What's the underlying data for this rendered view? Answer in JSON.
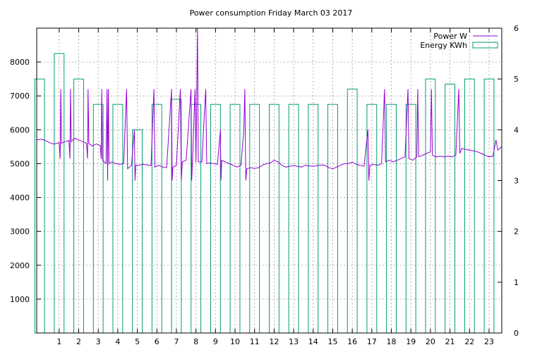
{
  "chart_data": {
    "type": "bar+line",
    "title": "Power consumption Friday March 03 2017",
    "x_ticks": [
      1,
      2,
      3,
      4,
      5,
      6,
      7,
      8,
      9,
      10,
      11,
      12,
      13,
      14,
      15,
      16,
      17,
      18,
      19,
      20,
      21,
      22,
      23
    ],
    "xlim": [
      -0.15,
      23.65
    ],
    "y_left": {
      "ticks": [
        1000,
        2000,
        3000,
        4000,
        5000,
        6000,
        7000,
        8000
      ],
      "ylim": [
        0,
        9000
      ]
    },
    "y_right": {
      "ticks": [
        0,
        1,
        2,
        3,
        4,
        5,
        6
      ],
      "ylim": [
        0,
        6
      ]
    },
    "grid": true,
    "legend": {
      "position": "top-right"
    },
    "colors": {
      "power": "#9400d3",
      "energy": "#009e73"
    },
    "series": [
      {
        "name": "Power W",
        "axis": "left",
        "style": "line",
        "points": [
          [
            -0.15,
            5700
          ],
          [
            0.1,
            5720
          ],
          [
            0.3,
            5680
          ],
          [
            0.5,
            5620
          ],
          [
            0.7,
            5580
          ],
          [
            0.9,
            5600
          ],
          [
            1.0,
            5620
          ],
          [
            1.05,
            5150
          ],
          [
            1.08,
            7200
          ],
          [
            1.12,
            5600
          ],
          [
            1.3,
            5650
          ],
          [
            1.5,
            5680
          ],
          [
            1.55,
            5150
          ],
          [
            1.58,
            7200
          ],
          [
            1.62,
            5650
          ],
          [
            1.8,
            5750
          ],
          [
            2.0,
            5700
          ],
          [
            2.2,
            5650
          ],
          [
            2.4,
            5600
          ],
          [
            2.45,
            5150
          ],
          [
            2.48,
            7200
          ],
          [
            2.52,
            5600
          ],
          [
            2.7,
            5520
          ],
          [
            2.9,
            5580
          ],
          [
            3.1,
            5540
          ],
          [
            3.15,
            5150
          ],
          [
            3.18,
            7200
          ],
          [
            3.22,
            5100
          ],
          [
            3.4,
            5000
          ],
          [
            3.45,
            7200
          ],
          [
            3.48,
            4500
          ],
          [
            3.52,
            7200
          ],
          [
            3.55,
            5000
          ],
          [
            3.7,
            5050
          ],
          [
            3.9,
            5000
          ],
          [
            4.1,
            4980
          ],
          [
            4.3,
            5000
          ],
          [
            4.45,
            7200
          ],
          [
            4.5,
            4850
          ],
          [
            4.7,
            4950
          ],
          [
            4.85,
            6000
          ],
          [
            4.88,
            4500
          ],
          [
            4.92,
            4950
          ],
          [
            5.1,
            4950
          ],
          [
            5.3,
            4980
          ],
          [
            5.5,
            4960
          ],
          [
            5.7,
            4940
          ],
          [
            5.85,
            7200
          ],
          [
            5.9,
            4900
          ],
          [
            6.1,
            4950
          ],
          [
            6.3,
            4900
          ],
          [
            6.5,
            4880
          ],
          [
            6.75,
            7200
          ],
          [
            6.78,
            4500
          ],
          [
            6.82,
            4900
          ],
          [
            7.0,
            4950
          ],
          [
            7.2,
            7200
          ],
          [
            7.25,
            4500
          ],
          [
            7.3,
            5050
          ],
          [
            7.5,
            5100
          ],
          [
            7.75,
            7200
          ],
          [
            7.78,
            4500
          ],
          [
            7.82,
            5050
          ],
          [
            7.95,
            7200
          ],
          [
            8.0,
            5050
          ],
          [
            8.08,
            9000
          ],
          [
            8.12,
            5050
          ],
          [
            8.3,
            5050
          ],
          [
            8.5,
            7200
          ],
          [
            8.55,
            5000
          ],
          [
            8.7,
            5020
          ],
          [
            8.9,
            5000
          ],
          [
            9.1,
            4980
          ],
          [
            9.25,
            6000
          ],
          [
            9.28,
            4500
          ],
          [
            9.32,
            5100
          ],
          [
            9.5,
            5050
          ],
          [
            9.7,
            5000
          ],
          [
            9.9,
            4950
          ],
          [
            10.1,
            4900
          ],
          [
            10.3,
            4950
          ],
          [
            10.45,
            6000
          ],
          [
            10.5,
            7200
          ],
          [
            10.55,
            4500
          ],
          [
            10.6,
            4850
          ],
          [
            10.8,
            4880
          ],
          [
            11.0,
            4860
          ],
          [
            11.2,
            4880
          ],
          [
            11.4,
            4950
          ],
          [
            11.6,
            5000
          ],
          [
            11.8,
            5020
          ],
          [
            12.0,
            5100
          ],
          [
            12.2,
            5050
          ],
          [
            12.4,
            4950
          ],
          [
            12.6,
            4900
          ],
          [
            12.8,
            4920
          ],
          [
            13.0,
            4950
          ],
          [
            13.2,
            4920
          ],
          [
            13.4,
            4900
          ],
          [
            13.6,
            4950
          ],
          [
            13.8,
            4930
          ],
          [
            14.0,
            4920
          ],
          [
            14.2,
            4940
          ],
          [
            14.4,
            4960
          ],
          [
            14.6,
            4950
          ],
          [
            14.8,
            4880
          ],
          [
            15.0,
            4850
          ],
          [
            15.2,
            4900
          ],
          [
            15.4,
            4950
          ],
          [
            15.6,
            5000
          ],
          [
            15.8,
            5000
          ],
          [
            16.0,
            5050
          ],
          [
            16.2,
            4980
          ],
          [
            16.4,
            4950
          ],
          [
            16.6,
            4920
          ],
          [
            16.8,
            6000
          ],
          [
            16.85,
            4500
          ],
          [
            16.9,
            4950
          ],
          [
            17.1,
            4980
          ],
          [
            17.3,
            4950
          ],
          [
            17.5,
            5000
          ],
          [
            17.65,
            7200
          ],
          [
            17.7,
            5050
          ],
          [
            17.9,
            5100
          ],
          [
            18.1,
            5050
          ],
          [
            18.3,
            5100
          ],
          [
            18.5,
            5150
          ],
          [
            18.7,
            5200
          ],
          [
            18.85,
            7200
          ],
          [
            18.9,
            5150
          ],
          [
            19.1,
            5100
          ],
          [
            19.3,
            5200
          ],
          [
            19.35,
            7200
          ],
          [
            19.4,
            5200
          ],
          [
            19.6,
            5250
          ],
          [
            19.8,
            5300
          ],
          [
            20.0,
            5350
          ],
          [
            20.05,
            7200
          ],
          [
            20.1,
            5250
          ],
          [
            20.3,
            5200
          ],
          [
            20.5,
            5220
          ],
          [
            20.7,
            5200
          ],
          [
            20.9,
            5220
          ],
          [
            21.1,
            5200
          ],
          [
            21.3,
            5250
          ],
          [
            21.45,
            7200
          ],
          [
            21.5,
            5300
          ],
          [
            21.6,
            5450
          ],
          [
            21.8,
            5420
          ],
          [
            22.0,
            5400
          ],
          [
            22.2,
            5380
          ],
          [
            22.4,
            5350
          ],
          [
            22.6,
            5300
          ],
          [
            22.8,
            5250
          ],
          [
            23.0,
            5200
          ],
          [
            23.2,
            5220
          ],
          [
            23.35,
            5700
          ],
          [
            23.45,
            5400
          ],
          [
            23.65,
            5500
          ]
        ]
      },
      {
        "name": "Energy KWh",
        "axis": "right",
        "style": "boxes",
        "box_width": 0.5,
        "points": [
          [
            0,
            5.0
          ],
          [
            1,
            5.5
          ],
          [
            2,
            5.0
          ],
          [
            3,
            4.5
          ],
          [
            4,
            4.5
          ],
          [
            5,
            4.0
          ],
          [
            6,
            4.5
          ],
          [
            7,
            4.6
          ],
          [
            8,
            4.5
          ],
          [
            9,
            4.5
          ],
          [
            10,
            4.5
          ],
          [
            11,
            4.5
          ],
          [
            12,
            4.5
          ],
          [
            13,
            4.5
          ],
          [
            14,
            4.5
          ],
          [
            15,
            4.5
          ],
          [
            16,
            4.8
          ],
          [
            17,
            4.5
          ],
          [
            18,
            4.5
          ],
          [
            19,
            4.5
          ],
          [
            20,
            5.0
          ],
          [
            21,
            4.9
          ],
          [
            22,
            5.0
          ],
          [
            23,
            5.0
          ]
        ]
      }
    ]
  }
}
